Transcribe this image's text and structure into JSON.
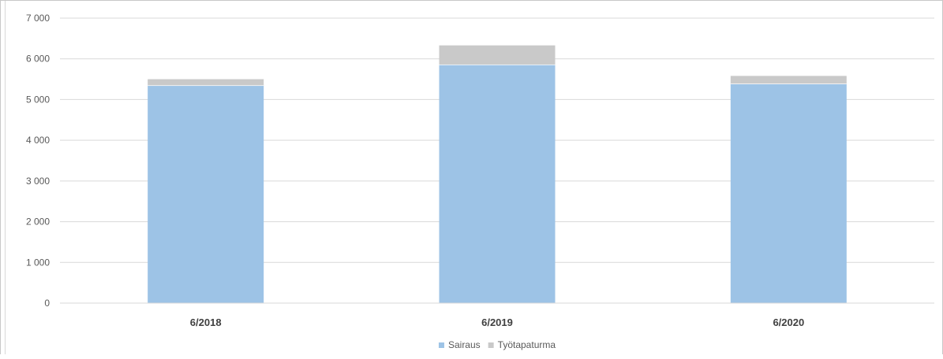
{
  "chart_data": {
    "type": "bar",
    "stacked": true,
    "categories": [
      "6/2018",
      "6/2019",
      "6/2020"
    ],
    "series": [
      {
        "name": "Sairaus",
        "values": [
          5350,
          5860,
          5390
        ],
        "color": "#9dc3e6"
      },
      {
        "name": "Työtapaturma",
        "values": [
          150,
          470,
          190
        ],
        "color": "#c9c9c9"
      }
    ],
    "ylim": [
      0,
      7000
    ],
    "yticks": [
      0,
      1000,
      2000,
      3000,
      4000,
      5000,
      6000,
      7000
    ],
    "ytick_labels": [
      "0",
      "1 000",
      "2 000",
      "3 000",
      "4 000",
      "5 000",
      "6 000",
      "7 000"
    ],
    "grid": true,
    "legend": "bottom-center",
    "title": "",
    "xlabel": "",
    "ylabel": ""
  }
}
